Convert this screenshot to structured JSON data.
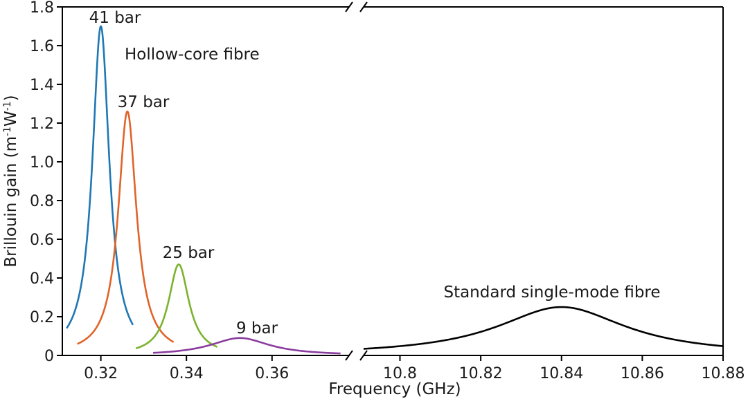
{
  "chart_data": {
    "type": "line",
    "xlabel": "Frequency (GHz)",
    "ylabel_parts": [
      "Brillouin gain (m",
      "-1",
      "W",
      "-1",
      ")"
    ],
    "ylim": [
      0,
      1.8
    ],
    "yticks": [
      "0",
      "0.2",
      "0.4",
      "0.6",
      "0.8",
      "1.0",
      "1.2",
      "1.4",
      "1.6",
      "1.8"
    ],
    "x_axis_broken": true,
    "x_segments": [
      {
        "xlim": [
          0.311,
          0.378
        ],
        "ticks": [
          "0.32",
          "0.34",
          "0.36"
        ]
      },
      {
        "xlim": [
          10.791,
          10.88
        ],
        "ticks": [
          "10.8",
          "10.82",
          "10.84",
          "10.86",
          "10.88"
        ]
      }
    ],
    "series": [
      {
        "name": "41 bar",
        "segment": 0,
        "color": "#1f77b4",
        "center": 0.32,
        "peak": 1.7,
        "hwhm": 0.0024,
        "xrange": [
          0.312,
          0.3275
        ]
      },
      {
        "name": "37 bar",
        "segment": 0,
        "color": "#e0642a",
        "center": 0.3262,
        "peak": 1.26,
        "hwhm": 0.0026,
        "xrange": [
          0.3145,
          0.337
        ]
      },
      {
        "name": "25 bar",
        "segment": 0,
        "color": "#7ab32e",
        "center": 0.3382,
        "peak": 0.47,
        "hwhm": 0.0029,
        "xrange": [
          0.3282,
          0.3472
        ]
      },
      {
        "name": "9 bar",
        "segment": 0,
        "color": "#8a3d9e",
        "center": 0.3525,
        "peak": 0.09,
        "hwhm": 0.0085,
        "xrange": [
          0.3322,
          0.376
        ]
      },
      {
        "name": "",
        "segment": 1,
        "color": "#000000",
        "center": 10.84,
        "peak": 0.25,
        "hwhm": 0.0195,
        "xrange": [
          10.791,
          10.88
        ]
      }
    ],
    "annotations": {
      "label_41": "41 bar",
      "label_37": "37 bar",
      "label_25": "25 bar",
      "label_9": "9 bar",
      "hollow": "Hollow-core fibre",
      "standard": "Standard single-mode fibre"
    }
  }
}
